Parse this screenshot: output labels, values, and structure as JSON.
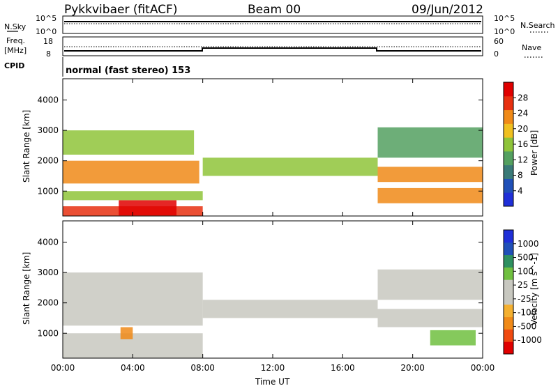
{
  "header": {
    "title": "Pykkvibaer (fitACF)",
    "beam": "Beam 00",
    "date": "09/Jun/2012"
  },
  "top_panels": {
    "nsky_label": "N.Sky",
    "nsky_ticks": [
      "10^5",
      "10^0"
    ],
    "nsearch_label": "N.Search",
    "nsearch_ticks": [
      "10^5",
      "10^0"
    ],
    "freq_label_1": "Freq.",
    "freq_label_2": "[MHz]",
    "freq_ticks": [
      "18",
      "8"
    ],
    "nave_label": "Nave",
    "nave_ticks": [
      "60",
      "0"
    ],
    "cpid_label": "CPID",
    "cpid_text": "normal (fast stereo) 153"
  },
  "chart_data": [
    {
      "type": "heatmap",
      "title": "",
      "xlabel": "",
      "ylabel": "Slant Range [km]",
      "x_ticks": [
        "00:00",
        "04:00",
        "08:00",
        "12:00",
        "16:00",
        "20:00",
        "00:00"
      ],
      "y_ticks": [
        "1000",
        "2000",
        "3000",
        "4000"
      ],
      "xlim": [
        0,
        24
      ],
      "ylim": [
        180,
        4700
      ],
      "colorbar": {
        "label": "Power [dB]",
        "ticks": [
          "28",
          "24",
          "20",
          "16",
          "12",
          "8",
          "4"
        ],
        "range": [
          0,
          30
        ],
        "colors": [
          "#1f2fd8",
          "#2050b8",
          "#3a7a78",
          "#54a060",
          "#8fc43a",
          "#f0c020",
          "#f08a18",
          "#e83010",
          "#e00000"
        ]
      },
      "bands": [
        {
          "t0": 0.0,
          "t1": 8.0,
          "r0": 180,
          "r1": 500,
          "level": 0.92
        },
        {
          "t0": 3.2,
          "t1": 6.5,
          "r0": 200,
          "r1": 700,
          "level": 1.0
        },
        {
          "t0": 0.0,
          "t1": 8.0,
          "r0": 700,
          "r1": 1000,
          "level": 0.55
        },
        {
          "t0": 0.0,
          "t1": 7.8,
          "r0": 1250,
          "r1": 2000,
          "level": 0.72
        },
        {
          "t0": 0.0,
          "t1": 7.5,
          "r0": 2200,
          "r1": 3000,
          "level": 0.45
        },
        {
          "t0": 8.0,
          "t1": 18.0,
          "r0": 1500,
          "r1": 2100,
          "level": 0.5
        },
        {
          "t0": 18.0,
          "t1": 24.0,
          "r0": 1300,
          "r1": 1800,
          "level": 0.78
        },
        {
          "t0": 18.0,
          "t1": 24.0,
          "r0": 600,
          "r1": 1100,
          "level": 0.7
        },
        {
          "t0": 18.0,
          "t1": 24.0,
          "r0": 2100,
          "r1": 3100,
          "level": 0.4
        }
      ]
    },
    {
      "type": "heatmap",
      "title": "",
      "xlabel": "Time UT",
      "ylabel": "Slant Range [km]",
      "x_ticks": [
        "00:00",
        "04:00",
        "08:00",
        "12:00",
        "16:00",
        "20:00",
        "00:00"
      ],
      "y_ticks": [
        "1000",
        "2000",
        "3000",
        "4000"
      ],
      "xlim": [
        0,
        24
      ],
      "ylim": [
        180,
        4700
      ],
      "colorbar": {
        "label": "Velocity [m s^-1]",
        "ticks": [
          "1000",
          "500",
          "100",
          "25",
          "-25",
          "-100",
          "-500",
          "-1000"
        ],
        "range": [
          -1200,
          1200
        ],
        "colors": [
          "#e00000",
          "#f04a10",
          "#f08a18",
          "#f4b030",
          "#c8c8c0",
          "#c8c8c0",
          "#70c040",
          "#2e9060",
          "#2050b8",
          "#1f2fd8"
        ]
      },
      "bands": [
        {
          "t0": 0.0,
          "t1": 8.0,
          "r0": 180,
          "r1": 1000,
          "level": 0.5
        },
        {
          "t0": 0.0,
          "t1": 8.0,
          "r0": 1250,
          "r1": 3000,
          "level": 0.5
        },
        {
          "t0": 3.3,
          "t1": 4.0,
          "r0": 800,
          "r1": 1200,
          "level": 0.2
        },
        {
          "t0": 8.0,
          "t1": 18.0,
          "r0": 1500,
          "r1": 2100,
          "level": 0.5
        },
        {
          "t0": 18.0,
          "t1": 24.0,
          "r0": 1200,
          "r1": 1800,
          "level": 0.5
        },
        {
          "t0": 18.0,
          "t1": 24.0,
          "r0": 2100,
          "r1": 3100,
          "level": 0.45
        },
        {
          "t0": 21.0,
          "t1": 23.6,
          "r0": 600,
          "r1": 1100,
          "level": 0.7
        }
      ]
    }
  ]
}
